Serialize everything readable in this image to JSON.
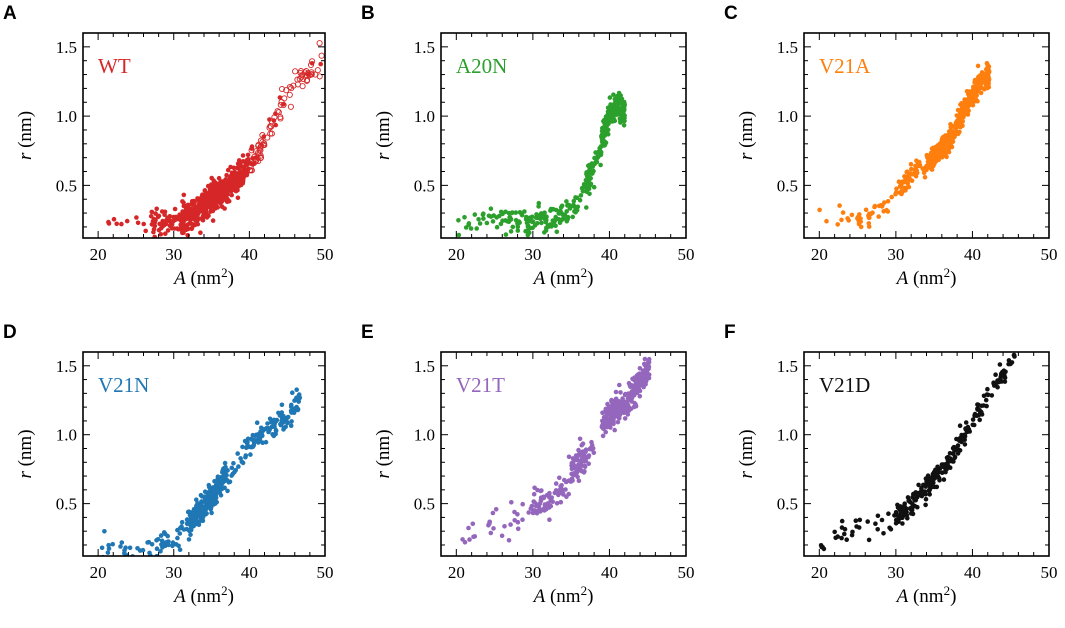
{
  "figure": {
    "xlabel_prefix": "A",
    "xlabel_unit": " (nm",
    "xlabel_exp": "2",
    "xlabel_close": ")",
    "ylabel_var": "r",
    "ylabel_unit": " (nm)"
  },
  "chart_data": [
    {
      "type": "scatter",
      "panel": "A",
      "label": "WT",
      "color": "#d62728",
      "marker": "mixed",
      "xlim": [
        18,
        50
      ],
      "ylim": [
        0.12,
        1.6
      ],
      "xticks": [
        20,
        30,
        40,
        50
      ],
      "xtick_labels": [
        "20",
        "30",
        "40",
        "50"
      ],
      "yticks": [
        0.5,
        1.0,
        1.5
      ],
      "ytick_labels": [
        "0.5",
        "1.0",
        "1.5"
      ],
      "trend": [
        [
          21,
          0.23
        ],
        [
          27,
          0.23
        ],
        [
          30,
          0.24
        ],
        [
          32,
          0.28
        ],
        [
          34,
          0.35
        ],
        [
          35.5,
          0.43
        ],
        [
          37,
          0.48
        ],
        [
          38.5,
          0.55
        ],
        [
          40,
          0.65
        ],
        [
          41.5,
          0.78
        ],
        [
          43,
          0.95
        ],
        [
          45,
          1.12
        ],
        [
          47,
          1.27
        ],
        [
          49,
          1.38
        ],
        [
          50,
          1.42
        ]
      ],
      "density": [
        [
          21,
          27,
          10
        ],
        [
          27,
          31,
          60
        ],
        [
          31,
          34,
          140
        ],
        [
          34,
          37,
          200
        ],
        [
          37,
          39.5,
          120
        ],
        [
          39.5,
          42,
          50
        ],
        [
          42,
          50,
          60
        ]
      ],
      "open_from_x": 40,
      "spread": 0.05
    },
    {
      "type": "scatter",
      "panel": "B",
      "label": "A20N",
      "color": "#2ca02c",
      "marker": "filled",
      "xlim": [
        18,
        50
      ],
      "ylim": [
        0.12,
        1.6
      ],
      "xticks": [
        20,
        30,
        40,
        50
      ],
      "xtick_labels": [
        "20",
        "30",
        "40",
        "50"
      ],
      "yticks": [
        0.5,
        1.0,
        1.5
      ],
      "ytick_labels": [
        "0.5",
        "1.0",
        "1.5"
      ],
      "trend": [
        [
          20,
          0.24
        ],
        [
          24,
          0.25
        ],
        [
          30,
          0.25
        ],
        [
          33,
          0.26
        ],
        [
          35,
          0.32
        ],
        [
          36,
          0.42
        ],
        [
          37,
          0.52
        ],
        [
          38,
          0.65
        ],
        [
          39,
          0.8
        ],
        [
          39.7,
          0.95
        ],
        [
          40.3,
          1.05
        ],
        [
          41,
          1.08
        ],
        [
          42,
          1.02
        ]
      ],
      "density": [
        [
          20,
          26,
          25
        ],
        [
          26,
          34,
          100
        ],
        [
          34,
          37,
          40
        ],
        [
          37,
          39,
          60
        ],
        [
          39,
          42,
          200
        ]
      ],
      "open_from_x": null,
      "spread": 0.05
    },
    {
      "type": "scatter",
      "panel": "C",
      "label": "V21A",
      "color": "#ff7f0e",
      "marker": "filled",
      "xlim": [
        18,
        50
      ],
      "ylim": [
        0.12,
        1.6
      ],
      "xticks": [
        20,
        30,
        40,
        50
      ],
      "xtick_labels": [
        "20",
        "30",
        "40",
        "50"
      ],
      "yticks": [
        0.5,
        1.0,
        1.5
      ],
      "ytick_labels": [
        "0.5",
        "1.0",
        "1.5"
      ],
      "trend": [
        [
          19.5,
          0.27
        ],
        [
          25,
          0.27
        ],
        [
          27,
          0.29
        ],
        [
          29,
          0.38
        ],
        [
          31,
          0.52
        ],
        [
          33,
          0.62
        ],
        [
          35,
          0.7
        ],
        [
          37,
          0.82
        ],
        [
          38.5,
          1.0
        ],
        [
          40,
          1.15
        ],
        [
          41,
          1.25
        ],
        [
          42.2,
          1.3
        ]
      ],
      "density": [
        [
          19.5,
          25,
          10
        ],
        [
          25,
          30,
          30
        ],
        [
          30,
          34,
          60
        ],
        [
          34,
          37.5,
          180
        ],
        [
          37.5,
          42.2,
          220
        ]
      ],
      "open_from_x": null,
      "spread": 0.04
    },
    {
      "type": "scatter",
      "panel": "D",
      "label": "V21N",
      "color": "#1f77b4",
      "marker": "filled",
      "xlim": [
        18,
        50
      ],
      "ylim": [
        0.12,
        1.6
      ],
      "xticks": [
        20,
        30,
        40,
        50
      ],
      "xtick_labels": [
        "20",
        "30",
        "40",
        "50"
      ],
      "yticks": [
        0.5,
        1.0,
        1.5
      ],
      "ytick_labels": [
        "0.5",
        "1.0",
        "1.5"
      ],
      "trend": [
        [
          20.5,
          0.17
        ],
        [
          27,
          0.17
        ],
        [
          29,
          0.22
        ],
        [
          31,
          0.3
        ],
        [
          33,
          0.42
        ],
        [
          35,
          0.55
        ],
        [
          37,
          0.7
        ],
        [
          39,
          0.85
        ],
        [
          41,
          0.98
        ],
        [
          43,
          1.05
        ],
        [
          45,
          1.15
        ],
        [
          46.8,
          1.27
        ]
      ],
      "density": [
        [
          20.5,
          28,
          30
        ],
        [
          28,
          32,
          30
        ],
        [
          32,
          37,
          230
        ],
        [
          37,
          41,
          40
        ],
        [
          41,
          46.8,
          90
        ]
      ],
      "open_from_x": null,
      "spread": 0.05
    },
    {
      "type": "scatter",
      "panel": "E",
      "label": "V21T",
      "color": "#9467bd",
      "marker": "filled",
      "xlim": [
        18,
        50
      ],
      "ylim": [
        0.12,
        1.6
      ],
      "xticks": [
        20,
        30,
        40,
        50
      ],
      "xtick_labels": [
        "20",
        "30",
        "40",
        "50"
      ],
      "yticks": [
        0.5,
        1.0,
        1.5
      ],
      "ytick_labels": [
        "0.5",
        "1.0",
        "1.5"
      ],
      "trend": [
        [
          20,
          0.25
        ],
        [
          23,
          0.3
        ],
        [
          26,
          0.38
        ],
        [
          29,
          0.45
        ],
        [
          32,
          0.52
        ],
        [
          34,
          0.62
        ],
        [
          36,
          0.8
        ],
        [
          37.5,
          0.85
        ],
        [
          39.5,
          1.12
        ],
        [
          42,
          1.22
        ],
        [
          44,
          1.38
        ],
        [
          45.2,
          1.5
        ]
      ],
      "density": [
        [
          20,
          30,
          30
        ],
        [
          30,
          35,
          70
        ],
        [
          35,
          38,
          80
        ],
        [
          39,
          45.2,
          260
        ]
      ],
      "open_from_x": null,
      "spread": 0.05
    },
    {
      "type": "scatter",
      "panel": "F",
      "label": "V21D",
      "color": "#111111",
      "marker": "filled",
      "xlim": [
        18,
        50
      ],
      "ylim": [
        0.12,
        1.6
      ],
      "xticks": [
        20,
        30,
        40,
        50
      ],
      "xtick_labels": [
        "20",
        "30",
        "40",
        "50"
      ],
      "yticks": [
        0.5,
        1.0,
        1.5
      ],
      "ytick_labels": [
        "0.5",
        "1.0",
        "1.5"
      ],
      "trend": [
        [
          20,
          0.22
        ],
        [
          23,
          0.28
        ],
        [
          26,
          0.34
        ],
        [
          29,
          0.39
        ],
        [
          31,
          0.45
        ],
        [
          33,
          0.55
        ],
        [
          35,
          0.68
        ],
        [
          37,
          0.8
        ],
        [
          38.5,
          0.95
        ],
        [
          40,
          1.1
        ],
        [
          42,
          1.28
        ],
        [
          44,
          1.45
        ],
        [
          45.5,
          1.58
        ]
      ],
      "density": [
        [
          20,
          30,
          30
        ],
        [
          30,
          39,
          170
        ],
        [
          39,
          45.5,
          70
        ]
      ],
      "open_from_x": null,
      "spread": 0.04
    }
  ]
}
